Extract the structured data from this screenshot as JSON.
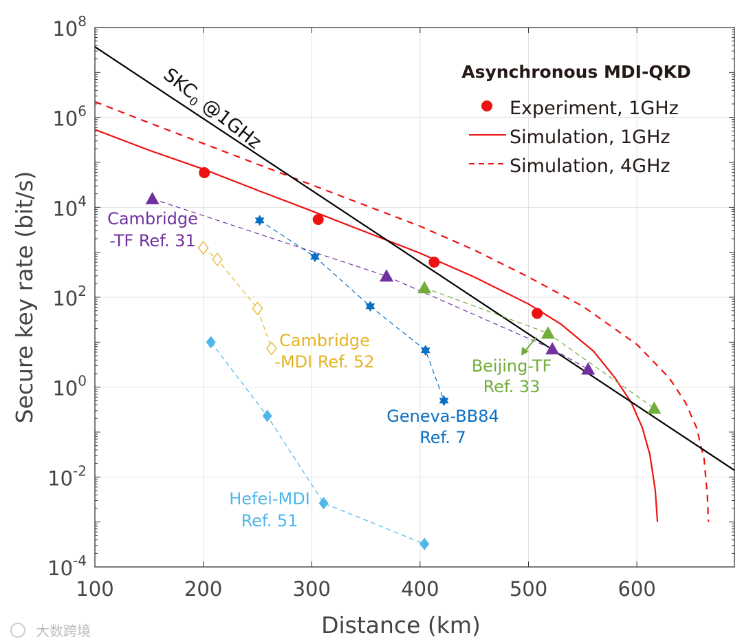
{
  "chart_data": {
    "type": "line",
    "title": "Asynchronous MDI-QKD",
    "xlabel": "Distance (km)",
    "ylabel": "Secure key rate (bit/s)",
    "xlim": [
      100,
      690
    ],
    "ylim_log10": [
      -4,
      8
    ],
    "yscale": "log",
    "grid": true,
    "legend_position": "top-right",
    "xticks": [
      100,
      200,
      300,
      400,
      500,
      600
    ],
    "xtick_labels": [
      "100",
      "200",
      "300",
      "400",
      "500",
      "600"
    ],
    "yticks_log10": [
      8,
      6,
      4,
      2,
      0,
      -2,
      -4
    ],
    "ytick_exponents": [
      "8",
      "6",
      "4",
      "2",
      "0",
      "-2",
      "-4"
    ],
    "ytick_base": "10",
    "series": [
      {
        "name": "Experiment, 1GHz",
        "kind": "markers",
        "marker": "circle",
        "color": "#ee1111",
        "legend": true,
        "x": [
          201,
          306,
          413,
          508
        ],
        "log10_y": [
          4.77,
          3.73,
          2.78,
          1.64
        ]
      },
      {
        "name": "Simulation, 1GHz",
        "kind": "line",
        "dash": "solid",
        "color": "#ee1111",
        "legend": true,
        "x": [
          100,
          150,
          200,
          250,
          300,
          350,
          400,
          450,
          500,
          530,
          560,
          580,
          595,
          605,
          612,
          617,
          619
        ],
        "log10_y": [
          5.73,
          5.27,
          4.85,
          4.38,
          3.92,
          3.45,
          2.98,
          2.45,
          1.85,
          1.4,
          0.8,
          0.2,
          -0.35,
          -0.9,
          -1.5,
          -2.3,
          -3.0
        ]
      },
      {
        "name": "Simulation, 4GHz",
        "kind": "line",
        "dash": "dashed",
        "color": "#ee1111",
        "legend": true,
        "x": [
          100,
          150,
          200,
          250,
          300,
          350,
          400,
          450,
          500,
          550,
          600,
          630,
          645,
          655,
          662,
          665,
          666
        ],
        "log10_y": [
          6.35,
          5.88,
          5.42,
          4.96,
          4.5,
          4.04,
          3.58,
          3.05,
          2.45,
          1.8,
          0.95,
          0.2,
          -0.35,
          -0.9,
          -1.6,
          -2.4,
          -3.0
        ]
      },
      {
        "name": "SKC0 @1GHz",
        "kind": "line",
        "dash": "solid",
        "color": "#000000",
        "legend": false,
        "x": [
          100,
          690
        ],
        "log10_y": [
          7.57,
          -1.85
        ]
      },
      {
        "name": "Cambridge-TF Ref. 31",
        "kind": "markers-dashed",
        "marker": "triangle",
        "color": "#7030a0",
        "legend": false,
        "x": [
          153,
          369,
          522,
          555
        ],
        "log10_y": [
          4.19,
          2.47,
          0.85,
          0.4
        ]
      },
      {
        "name": "Geneva-BB84 Ref. 7",
        "kind": "markers-dashed",
        "marker": "hexagram",
        "color": "#0a6fc2",
        "legend": false,
        "x": [
          252,
          303,
          354,
          405,
          422
        ],
        "log10_y": [
          3.71,
          2.9,
          1.8,
          0.82,
          -0.3
        ]
      },
      {
        "name": "Cambridge-MDI Ref. 52",
        "kind": "markers-dashed",
        "marker": "diamond-open",
        "color": "#e6b422",
        "legend": false,
        "x": [
          200,
          213,
          250,
          263
        ],
        "log10_y": [
          3.1,
          2.84,
          1.75,
          0.86
        ]
      },
      {
        "name": "Hefei-MDI Ref. 51",
        "kind": "markers-dashed",
        "marker": "diamond",
        "color": "#4db6ea",
        "legend": false,
        "x": [
          207,
          259,
          311,
          404
        ],
        "log10_y": [
          1.0,
          -0.64,
          -2.58,
          -3.49
        ]
      },
      {
        "name": "Beijing-TF Ref. 33",
        "kind": "markers-dashed",
        "marker": "triangle",
        "color": "#72ad3a",
        "legend": false,
        "x": [
          404,
          518,
          616
        ],
        "log10_y": [
          2.21,
          1.2,
          -0.47
        ]
      }
    ],
    "annotations": {
      "skc": {
        "main": "SKC",
        "sub": "0",
        "rest": " @1GHz"
      },
      "cambridge_tf": [
        "Cambridge",
        "-TF Ref. 31"
      ],
      "geneva": [
        "Geneva-BB84",
        "Ref. 7"
      ],
      "cambridge_mdi": [
        "Cambridge",
        "-MDI Ref. 52"
      ],
      "hefei": [
        "Hefei-MDI",
        "Ref. 51"
      ],
      "beijing": [
        "Beijing-TF",
        "Ref. 33"
      ]
    }
  },
  "watermark": "大数跨境"
}
